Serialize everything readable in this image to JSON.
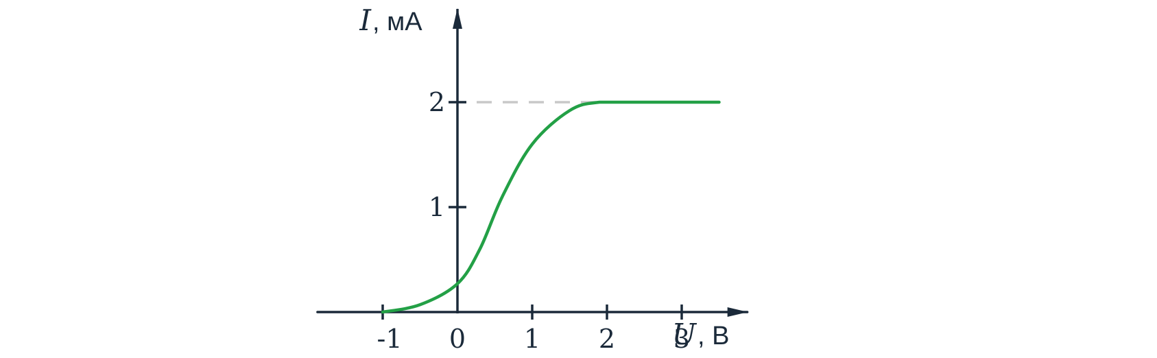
{
  "chart_data": {
    "type": "line",
    "xlabel": {
      "var": "U",
      "unit": ", В"
    },
    "ylabel": {
      "var": "I",
      "unit": ", мА"
    },
    "xlim": [
      -1.9,
      3.85
    ],
    "ylim": [
      0,
      2.85
    ],
    "x_ticks": [
      {
        "value": -1,
        "label": "-1"
      },
      {
        "value": 0,
        "label": "0"
      },
      {
        "value": 1,
        "label": "1"
      },
      {
        "value": 2,
        "label": "2"
      },
      {
        "value": 3,
        "label": "3"
      }
    ],
    "y_ticks": [
      {
        "value": 1,
        "label": "1"
      },
      {
        "value": 2,
        "label": "2"
      }
    ],
    "series": [
      {
        "color": "#23a046",
        "points": [
          [
            -1.0,
            0.0
          ],
          [
            -0.5,
            0.07
          ],
          [
            0.0,
            0.27
          ],
          [
            0.3,
            0.6
          ],
          [
            0.6,
            1.1
          ],
          [
            1.0,
            1.6
          ],
          [
            1.5,
            1.92
          ],
          [
            1.9,
            2.0
          ],
          [
            2.5,
            2.0
          ],
          [
            3.5,
            2.0
          ]
        ]
      }
    ],
    "reference_lines": [
      {
        "type": "horizontal",
        "y": 2,
        "x_from": 0,
        "x_to": 1.9,
        "style": "dashed",
        "color": "#c8c8c8"
      }
    ],
    "axis_color": "#1b2a3a",
    "grid": false
  }
}
